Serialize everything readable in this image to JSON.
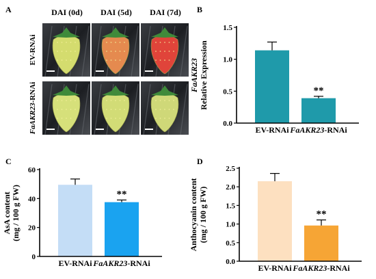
{
  "panels": {
    "A": {
      "letter": "A",
      "column_headers": [
        "DAI (0d)",
        "DAI (5d)",
        "DAI (7d)"
      ],
      "row_labels": [
        {
          "parts": [
            {
              "t": "EV-RNAi",
              "i": false
            }
          ]
        },
        {
          "parts": [
            {
              "t": "FaAKR23",
              "i": true
            },
            {
              "t": "-RNAi",
              "i": false
            }
          ]
        }
      ],
      "fruit_colors": [
        [
          "#d4dc6e",
          "#e58a4f",
          "#e0443a"
        ],
        [
          "#d6e07a",
          "#d2dc76",
          "#cfd878"
        ]
      ]
    }
  },
  "chart_data": [
    {
      "id": "B",
      "letter": "B",
      "type": "bar",
      "categories": [
        {
          "parts": [
            {
              "t": "EV-RNAi",
              "i": false
            }
          ]
        },
        {
          "parts": [
            {
              "t": "FaAKR23",
              "i": true
            },
            {
              "t": "-RNAi",
              "i": false
            }
          ]
        }
      ],
      "values": [
        1.14,
        0.39
      ],
      "errors": [
        0.13,
        0.03
      ],
      "colors": [
        "#1f9aaa",
        "#1f9aaa"
      ],
      "annotations": [
        "",
        "**"
      ],
      "ylabel_lines": [
        {
          "parts": [
            {
              "t": "FaAKR23",
              "i": true
            }
          ]
        },
        {
          "parts": [
            {
              "t": "Relative Expression",
              "i": false
            }
          ]
        }
      ],
      "ylim": [
        0,
        1.5
      ],
      "yticks": [
        0.0,
        0.5,
        1.0,
        1.5
      ],
      "tick_decimals": 1
    },
    {
      "id": "C",
      "letter": "C",
      "type": "bar",
      "categories": [
        {
          "parts": [
            {
              "t": "EV-RNAi",
              "i": false
            }
          ]
        },
        {
          "parts": [
            {
              "t": "FaAKR23",
              "i": true
            },
            {
              "t": "-RNAi",
              "i": false
            }
          ]
        }
      ],
      "values": [
        49.5,
        37.5
      ],
      "errors": [
        4.0,
        1.5
      ],
      "colors": [
        "#c4ddf6",
        "#1aa3f0"
      ],
      "annotations": [
        "",
        "**"
      ],
      "ylabel_lines": [
        {
          "parts": [
            {
              "t": "AsA content",
              "i": false
            }
          ]
        },
        {
          "parts": [
            {
              "t": "(mg / 100 g FW)",
              "i": false
            }
          ]
        }
      ],
      "ylim": [
        0,
        60
      ],
      "yticks": [
        0,
        20,
        40,
        60
      ],
      "tick_decimals": 0
    },
    {
      "id": "D",
      "letter": "D",
      "type": "bar",
      "categories": [
        {
          "parts": [
            {
              "t": "EV-RNAi",
              "i": false
            }
          ]
        },
        {
          "parts": [
            {
              "t": "FaAKR23",
              "i": true
            },
            {
              "t": "-RNAi",
              "i": false
            }
          ]
        }
      ],
      "values": [
        2.15,
        0.96
      ],
      "errors": [
        0.21,
        0.15
      ],
      "colors": [
        "#fde0c0",
        "#f6a535"
      ],
      "annotations": [
        "",
        "**"
      ],
      "ylabel_lines": [
        {
          "parts": [
            {
              "t": "Anthocyanin content",
              "i": false
            }
          ]
        },
        {
          "parts": [
            {
              "t": "(mg / 100 g FW)",
              "i": false
            }
          ]
        }
      ],
      "ylim": [
        0,
        2.5
      ],
      "yticks": [
        0.0,
        0.5,
        1.0,
        1.5,
        2.0,
        2.5
      ],
      "tick_decimals": 1
    }
  ]
}
